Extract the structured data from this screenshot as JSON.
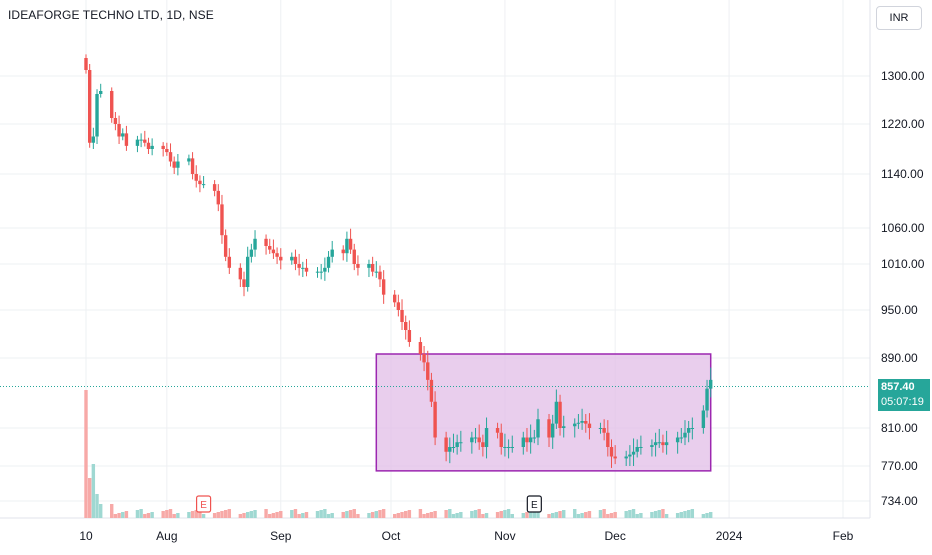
{
  "header": {
    "symbol_title": "IDEAFORGE TECHNO LTD, 1D, NSE",
    "currency": "INR"
  },
  "colors": {
    "up": "#26a69a",
    "down": "#ef5350",
    "up_volume": "#9fd8d2",
    "down_volume": "#f7a9a7",
    "range_box_fill": "#e1bee7",
    "range_box_border": "#9c27b0",
    "last_price_line": "#26a69a",
    "grid": "#eef0f3"
  },
  "last_price": {
    "value": "857.40",
    "countdown": "05:07:19"
  },
  "chart_data": {
    "type": "candlestick",
    "title": "IDEAFORGE TECHNO LTD, 1D, NSE",
    "y_ticks": [
      "1300.00",
      "1220.00",
      "1140.00",
      "1060.00",
      "1010.00",
      "950.00",
      "890.00",
      "810.00",
      "770.00",
      "734.00"
    ],
    "x_ticks": [
      {
        "label": "10",
        "date": "2023-07-10"
      },
      {
        "label": "Aug",
        "date": "2023-08-01"
      },
      {
        "label": "Sep",
        "date": "2023-09-01"
      },
      {
        "label": "Oct",
        "date": "2023-10-01"
      },
      {
        "label": "Nov",
        "date": "2023-11-01"
      },
      {
        "label": "Dec",
        "date": "2023-12-01"
      },
      {
        "label": "2024",
        "date": "2024-01-01"
      },
      {
        "label": "Feb",
        "date": "2024-02-01"
      }
    ],
    "range_box": {
      "date_start": "2023-09-27",
      "date_end": "2023-12-27",
      "price_top": 895,
      "price_bottom": 765
    },
    "event_markers": [
      {
        "label": "E",
        "date": "2023-08-11",
        "type": "earnings-past"
      },
      {
        "label": "E",
        "date": "2023-11-09",
        "type": "earnings"
      }
    ],
    "candles_close": [
      1310,
      1190,
      1200,
      1270,
      1275,
      1230,
      1220,
      1200,
      1205,
      1185,
      1195,
      1195,
      1190,
      1180,
      1185,
      1180,
      1175,
      1160,
      1150,
      1160,
      1165,
      1140,
      1130,
      1125,
      1125,
      1115,
      1095,
      1050,
      1020,
      1005,
      990,
      980,
      1020,
      1030,
      1045,
      1035,
      1030,
      1025,
      1020,
      1015,
      1020,
      1010,
      1005,
      1005,
      1000,
      1000,
      1000,
      1005,
      1020,
      1030,
      1025,
      1045,
      1030,
      1010,
      1005,
      1010,
      1000,
      1000,
      990,
      970,
      960,
      950,
      935,
      925,
      910,
      895,
      885,
      865,
      840,
      800,
      785,
      790,
      790,
      795,
      795,
      800,
      800,
      795,
      790,
      810,
      805,
      790,
      790,
      790,
      790,
      800,
      795,
      800,
      800,
      820,
      800,
      815,
      840,
      810,
      812,
      815,
      816,
      818,
      815,
      810,
      810,
      805,
      790,
      780,
      778,
      780,
      782,
      785,
      790,
      790,
      792,
      795,
      795,
      792,
      795,
      800,
      800,
      805,
      810,
      810,
      830,
      855,
      865
    ]
  }
}
